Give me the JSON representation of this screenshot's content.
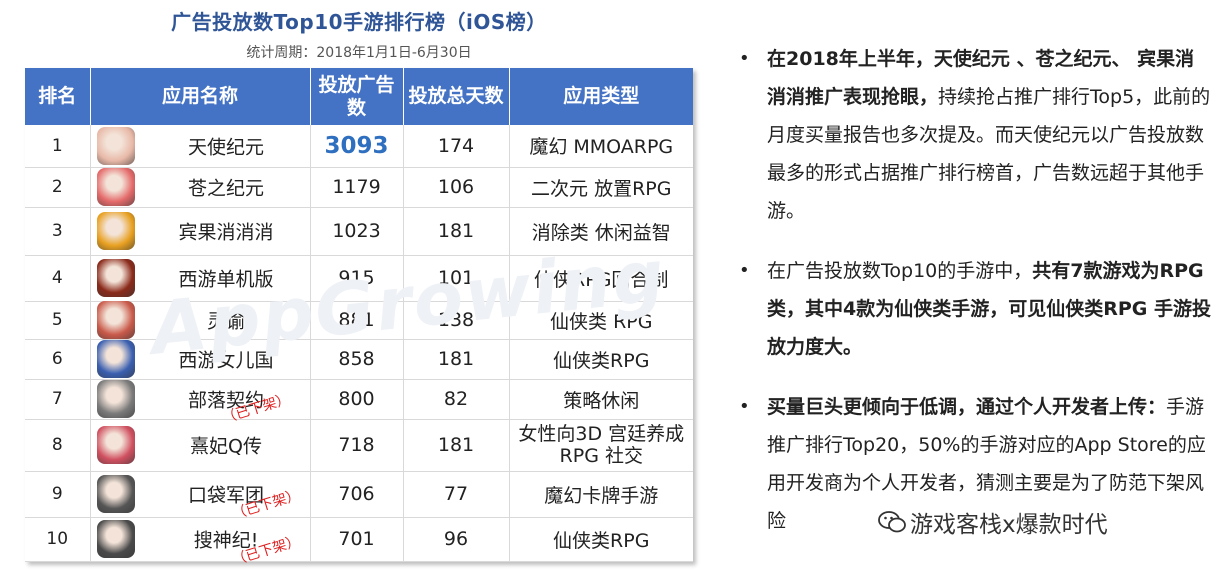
{
  "title": "广告投放数Top10手游排行榜（iOS榜）",
  "subtitle": "统计周期：2018年1月1日-6月30日",
  "table": {
    "headers": [
      "排名",
      "应用名称",
      "投放广告数",
      "投放总天数",
      "应用类型"
    ],
    "rows": [
      {
        "rank": "1",
        "name": "天使纪元",
        "ads": "3093",
        "days": "174",
        "type": "魔幻 MMOARPG",
        "removed": "",
        "icon_color": "#e8b9a8"
      },
      {
        "rank": "2",
        "name": "苍之纪元",
        "ads": "1179",
        "days": "106",
        "type": "二次元 放置RPG",
        "removed": "",
        "icon_color": "#e46a6a"
      },
      {
        "rank": "3",
        "name": "宾果消消消",
        "ads": "1023",
        "days": "181",
        "type": "消除类 休闲益智",
        "removed": "",
        "icon_color": "#e8a020"
      },
      {
        "rank": "4",
        "name": "西游单机版",
        "ads": "915",
        "days": "101",
        "type": "仙侠RPG回合制",
        "removed": "",
        "icon_color": "#8a2a1a"
      },
      {
        "rank": "5",
        "name": "灵谕",
        "ads": "881",
        "days": "138",
        "type": "仙侠类  RPG",
        "removed": "",
        "icon_color": "#c95a4a"
      },
      {
        "rank": "6",
        "name": "西游女儿国",
        "ads": "858",
        "days": "181",
        "type": "仙侠类RPG",
        "removed": "",
        "icon_color": "#3a5fb0"
      },
      {
        "rank": "7",
        "name": "部落契约",
        "ads": "800",
        "days": "82",
        "type": "策略休闲",
        "removed": "（已下架）",
        "icon_color": "#7a7a7a"
      },
      {
        "rank": "8",
        "name": "熹妃Q传",
        "ads": "718",
        "days": "181",
        "type": "女性向3D   宫廷养成  RPG 社交",
        "removed": "",
        "icon_color": "#d05060"
      },
      {
        "rank": "9",
        "name": "口袋军团",
        "ads": "706",
        "days": "77",
        "type": "魔幻卡牌手游",
        "removed": "（已下架）",
        "icon_color": "#555555"
      },
      {
        "rank": "10",
        "name": "搜神纪!",
        "ads": "701",
        "days": "96",
        "type": "仙侠类RPG",
        "removed": "（已下架）",
        "icon_color": "#4a4a4a"
      }
    ]
  },
  "watermark": "AppGrowing",
  "bullets": [
    {
      "bold": "在2018年上半年，天使纪元 、苍之纪元、 宾果消消消推广表现抢眼，",
      "rest": "持续抢占推广排行Top5，此前的月度买量报告也多次提及。而天使纪元以广告投放数最多的形式占据推广排行榜首，广告数远超于其他手游。"
    },
    {
      "lead": "在广告投放数Top10的手游中，",
      "bold": "共有7款游戏为RPG类，其中4款为仙侠类手游，可见仙侠类RPG 手游投放力度大。"
    },
    {
      "bold": "买量巨头更倾向于低调，通过个人开发者上传：",
      "rest": "手游推广排行Top20，50%的手游对应的App Store的应用开发商为个人开发者，猜测主要是为了防范下架风险"
    }
  ],
  "wechat_label": "游戏客栈x爆款时代",
  "colors": {
    "header_bg": "#4472c4",
    "title": "#2f5597",
    "highlight": "#2f6fc0",
    "removed": "#e02020"
  }
}
